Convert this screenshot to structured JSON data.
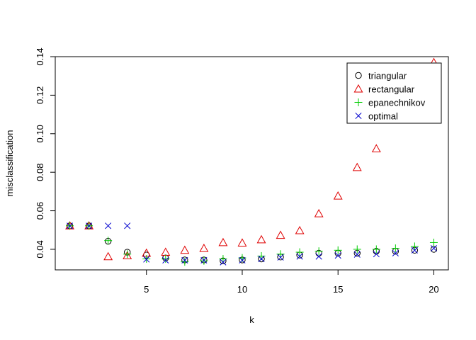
{
  "chart_data": {
    "type": "scatter",
    "title": "",
    "xlabel": "k",
    "ylabel": "misclassification",
    "xlim": [
      0.24,
      20.76
    ],
    "ylim": [
      0.02932,
      0.14
    ],
    "x_ticks": [
      5,
      10,
      15,
      20
    ],
    "x_tick_labels": [
      "5",
      "10",
      "15",
      "20"
    ],
    "y_ticks": [
      0.04,
      0.06,
      0.08,
      0.1,
      0.12,
      0.14
    ],
    "y_tick_labels": [
      "0.04",
      "0.06",
      "0.08",
      "0.10",
      "0.12",
      "0.14"
    ],
    "grid": false,
    "legend_position": "top-right",
    "x": [
      1,
      2,
      3,
      4,
      5,
      6,
      7,
      8,
      9,
      10,
      11,
      12,
      13,
      14,
      15,
      16,
      17,
      18,
      19,
      20
    ],
    "series": [
      {
        "name": "triangular",
        "marker": "circle",
        "color": "#000000",
        "values": [
          0.0522,
          0.0522,
          0.0442,
          0.0385,
          0.037,
          0.0355,
          0.0345,
          0.0345,
          0.034,
          0.0345,
          0.035,
          0.036,
          0.037,
          0.038,
          0.038,
          0.038,
          0.039,
          0.039,
          0.0395,
          0.04
        ]
      },
      {
        "name": "rectangular",
        "marker": "triangle",
        "color": "#DF0000",
        "values": [
          0.0522,
          0.0522,
          0.0362,
          0.0367,
          0.038,
          0.0385,
          0.0395,
          0.0405,
          0.0435,
          0.0433,
          0.045,
          0.0473,
          0.0497,
          0.0585,
          0.0677,
          0.0825,
          0.0922,
          null,
          null,
          0.137
        ]
      },
      {
        "name": "epanechnikov",
        "marker": "plus",
        "color": "#00CD00",
        "values": [
          0.0522,
          0.0522,
          0.0445,
          0.0375,
          0.035,
          0.035,
          0.0335,
          0.034,
          0.035,
          0.0355,
          0.0365,
          0.0375,
          0.0385,
          0.039,
          0.0395,
          0.04,
          0.04,
          0.0405,
          0.0415,
          0.0435
        ]
      },
      {
        "name": "optimal",
        "marker": "x",
        "color": "#0000CD",
        "values": [
          0.0522,
          0.0522,
          0.0522,
          0.0522,
          0.0348,
          0.0343,
          0.0343,
          0.0343,
          0.0333,
          0.0343,
          0.035,
          0.0358,
          0.0363,
          0.0363,
          0.0368,
          0.0373,
          0.0375,
          0.038,
          0.0395,
          0.0405
        ]
      }
    ]
  }
}
